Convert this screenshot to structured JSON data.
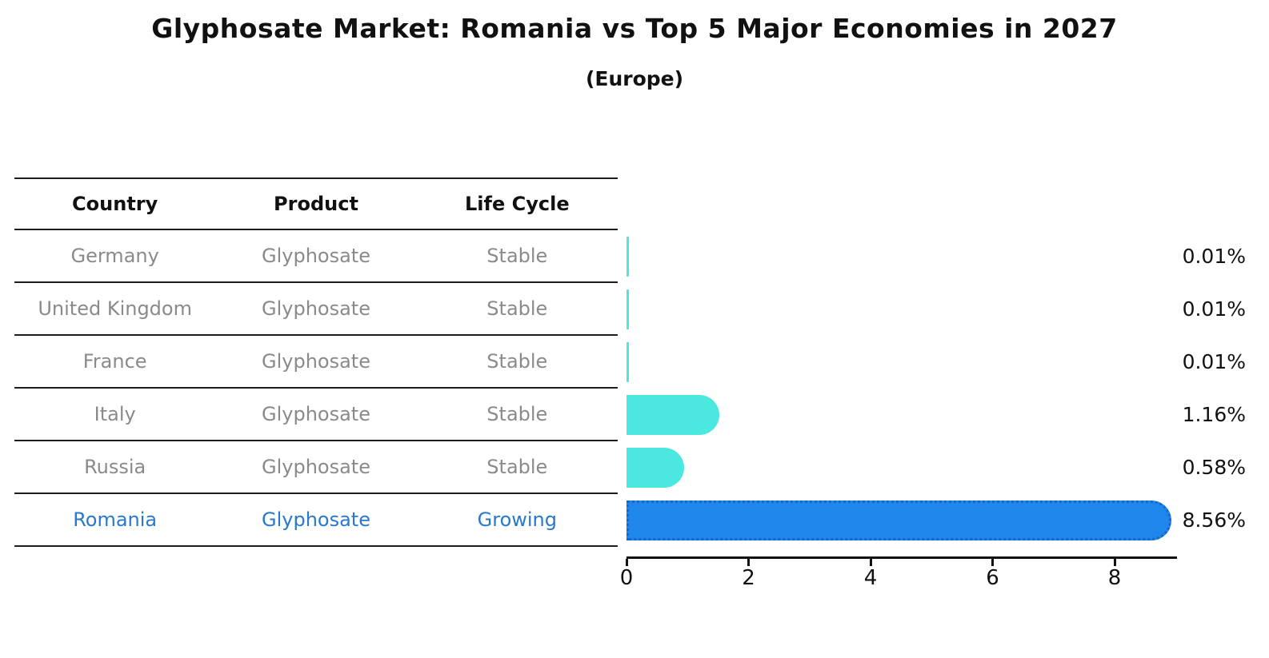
{
  "title": "Glyphosate Market: Romania vs Top 5 Major Economies in 2027",
  "subtitle": "(Europe)",
  "table": {
    "headers": [
      "Country",
      "Product",
      "Life Cycle"
    ],
    "rows": [
      {
        "country": "Germany",
        "product": "Glyphosate",
        "life_cycle": "Stable",
        "highlight": false
      },
      {
        "country": "United Kingdom",
        "product": "Glyphosate",
        "life_cycle": "Stable",
        "highlight": false
      },
      {
        "country": "France",
        "product": "Glyphosate",
        "life_cycle": "Stable",
        "highlight": false
      },
      {
        "country": "Italy",
        "product": "Glyphosate",
        "life_cycle": "Stable",
        "highlight": false
      },
      {
        "country": "Russia",
        "product": "Glyphosate",
        "life_cycle": "Stable",
        "highlight": false
      },
      {
        "country": "Romania",
        "product": "Glyphosate",
        "life_cycle": "Growing",
        "highlight": true
      }
    ]
  },
  "chart_data": {
    "type": "bar",
    "orientation": "horizontal",
    "title": "Glyphosate Market: Romania vs Top 5 Major Economies in 2027",
    "subtitle": "(Europe)",
    "categories": [
      "Germany",
      "United Kingdom",
      "France",
      "Italy",
      "Russia",
      "Romania"
    ],
    "values": [
      0.01,
      0.01,
      0.01,
      1.16,
      0.58,
      8.56
    ],
    "value_labels": [
      "0.01%",
      "0.01%",
      "0.01%",
      "1.16%",
      "0.58%",
      "8.56%"
    ],
    "unit": "%",
    "x_ticks": [
      "0",
      "2",
      "4",
      "6",
      "8"
    ],
    "x_tick_values": [
      0,
      2,
      4,
      6,
      8
    ],
    "xlim": [
      0,
      9
    ],
    "grid": false,
    "legend": false,
    "highlight_category": "Romania",
    "colors": {
      "bar_default": "#4BE8DF",
      "bar_highlight": "#1F86EC",
      "bar_highlight_border": "#1566C8",
      "highlight_text": "#2878CE",
      "row_text": "#8a8a8a",
      "header_text": "#111111",
      "label_text": "#111111"
    }
  }
}
